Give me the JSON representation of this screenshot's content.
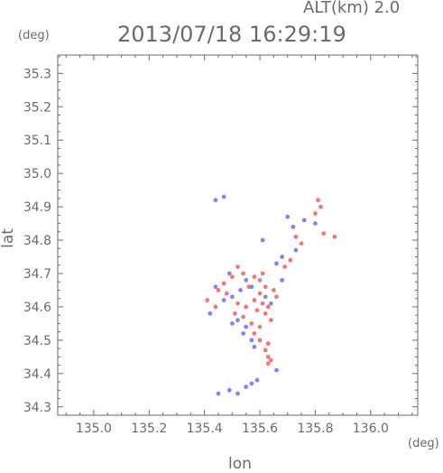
{
  "header": {
    "altitude_label": "ALT(km) 2.0",
    "timestamp": "2013/07/18 16:29:19",
    "y_unit": "(deg)",
    "x_unit": "(deg)"
  },
  "chart_data": {
    "type": "scatter",
    "xlabel": "lon",
    "ylabel": "lat",
    "xlim": [
      134.87,
      136.17
    ],
    "ylim": [
      34.275,
      35.355
    ],
    "x_ticks": [
      "135.0",
      "135.2",
      "135.4",
      "135.6",
      "135.8",
      "136.0"
    ],
    "y_ticks": [
      "34.3",
      "34.4",
      "34.5",
      "34.6",
      "34.7",
      "34.8",
      "34.9",
      "35.0",
      "35.1",
      "35.2",
      "35.3"
    ],
    "grid": false,
    "colors": {
      "positive": "#f06060",
      "negative": "#6f6ff0",
      "axis": "#6b6b6b"
    },
    "series": [
      {
        "color_role": "positive",
        "points": [
          [
            135.81,
            34.92
          ],
          [
            135.82,
            34.9
          ],
          [
            135.8,
            34.88
          ],
          [
            135.87,
            34.81
          ],
          [
            135.83,
            34.82
          ],
          [
            135.73,
            34.81
          ],
          [
            135.75,
            34.79
          ],
          [
            135.71,
            34.74
          ],
          [
            135.69,
            34.72
          ],
          [
            135.52,
            34.72
          ],
          [
            135.54,
            34.7
          ],
          [
            135.5,
            34.69
          ],
          [
            135.47,
            34.67
          ],
          [
            135.45,
            34.65
          ],
          [
            135.58,
            34.69
          ],
          [
            135.6,
            34.68
          ],
          [
            135.62,
            34.66
          ],
          [
            135.65,
            34.65
          ],
          [
            135.6,
            34.64
          ],
          [
            135.58,
            34.62
          ],
          [
            135.61,
            34.61
          ],
          [
            135.63,
            34.6
          ],
          [
            135.59,
            34.59
          ],
          [
            135.62,
            34.58
          ],
          [
            135.55,
            34.6
          ],
          [
            135.52,
            34.61
          ],
          [
            135.54,
            34.57
          ],
          [
            135.57,
            34.55
          ],
          [
            135.6,
            34.54
          ],
          [
            135.58,
            34.52
          ],
          [
            135.6,
            34.5
          ],
          [
            135.63,
            34.49
          ],
          [
            135.62,
            34.47
          ],
          [
            135.63,
            34.45
          ],
          [
            135.64,
            34.44
          ],
          [
            135.63,
            34.43
          ],
          [
            135.41,
            34.62
          ],
          [
            135.44,
            34.6
          ],
          [
            135.48,
            34.64
          ],
          [
            135.66,
            34.63
          ],
          [
            135.64,
            34.56
          ],
          [
            135.56,
            34.66
          ],
          [
            135.51,
            34.58
          ],
          [
            135.61,
            34.7
          ]
        ]
      },
      {
        "color_role": "negative",
        "points": [
          [
            135.44,
            34.92
          ],
          [
            135.47,
            34.93
          ],
          [
            135.7,
            34.87
          ],
          [
            135.72,
            34.84
          ],
          [
            135.76,
            34.86
          ],
          [
            135.8,
            34.85
          ],
          [
            135.73,
            34.77
          ],
          [
            135.68,
            34.75
          ],
          [
            135.66,
            34.73
          ],
          [
            135.55,
            34.68
          ],
          [
            135.57,
            34.66
          ],
          [
            135.53,
            34.65
          ],
          [
            135.5,
            34.63
          ],
          [
            135.47,
            34.62
          ],
          [
            135.44,
            34.66
          ],
          [
            135.52,
            34.56
          ],
          [
            135.55,
            34.54
          ],
          [
            135.57,
            34.5
          ],
          [
            135.58,
            34.48
          ],
          [
            135.54,
            34.52
          ],
          [
            135.5,
            34.55
          ],
          [
            135.62,
            34.63
          ],
          [
            135.64,
            34.61
          ],
          [
            135.45,
            34.34
          ],
          [
            135.49,
            34.35
          ],
          [
            135.52,
            34.34
          ],
          [
            135.55,
            34.36
          ],
          [
            135.57,
            34.37
          ],
          [
            135.59,
            34.38
          ],
          [
            135.66,
            34.41
          ],
          [
            135.61,
            34.8
          ],
          [
            135.49,
            34.7
          ],
          [
            135.42,
            34.58
          ],
          [
            135.68,
            34.68
          ]
        ]
      }
    ]
  }
}
